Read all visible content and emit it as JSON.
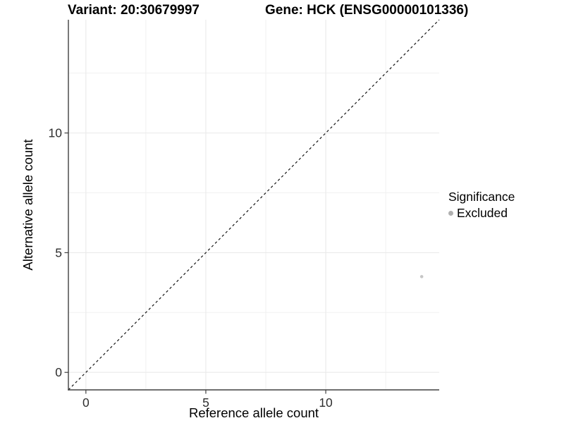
{
  "titles": {
    "left": "Variant: 20:30679997",
    "right": "Gene: HCK (ENSG00000101336)"
  },
  "chart_data": {
    "type": "scatter",
    "title_left": "Variant: 20:30679997",
    "title_right": "Gene: HCK (ENSG00000101336)",
    "xlabel": "Reference allele count",
    "ylabel": "Alternative allele count",
    "xlim": [
      -0.73,
      14.73
    ],
    "ylim": [
      -0.73,
      14.73
    ],
    "x_major_ticks": [
      0,
      5,
      10
    ],
    "x_tick_labels": [
      "0",
      "5",
      "10"
    ],
    "y_major_ticks": [
      0,
      5,
      10
    ],
    "y_tick_labels": [
      "0",
      "5",
      "10"
    ],
    "x_minor_ticks": [
      2.5,
      7.5,
      12.5
    ],
    "y_minor_ticks": [
      2.5,
      7.5,
      12.5
    ],
    "grid": true,
    "points": [
      {
        "x": 14,
        "y": 4,
        "series": "Excluded"
      }
    ],
    "reference_line": {
      "kind": "abline",
      "slope": 1,
      "intercept": 0,
      "style": "dashed"
    },
    "legend": {
      "title": "Significance",
      "position": "right",
      "items": [
        {
          "label": "Excluded",
          "marker": "circle",
          "color": "#b0b0b0"
        }
      ]
    }
  },
  "colors": {
    "background": "#ffffff",
    "axis_line": "#404040",
    "tick_mark": "#404040",
    "tick_label": "#2e2e2e",
    "axis_title": "#000000",
    "grid_major": "#eaeaea",
    "grid_minor": "#f1f1f1",
    "reference_line": "#141414",
    "point": "#c6c6c6",
    "legend_key": "#b0b0b0"
  }
}
